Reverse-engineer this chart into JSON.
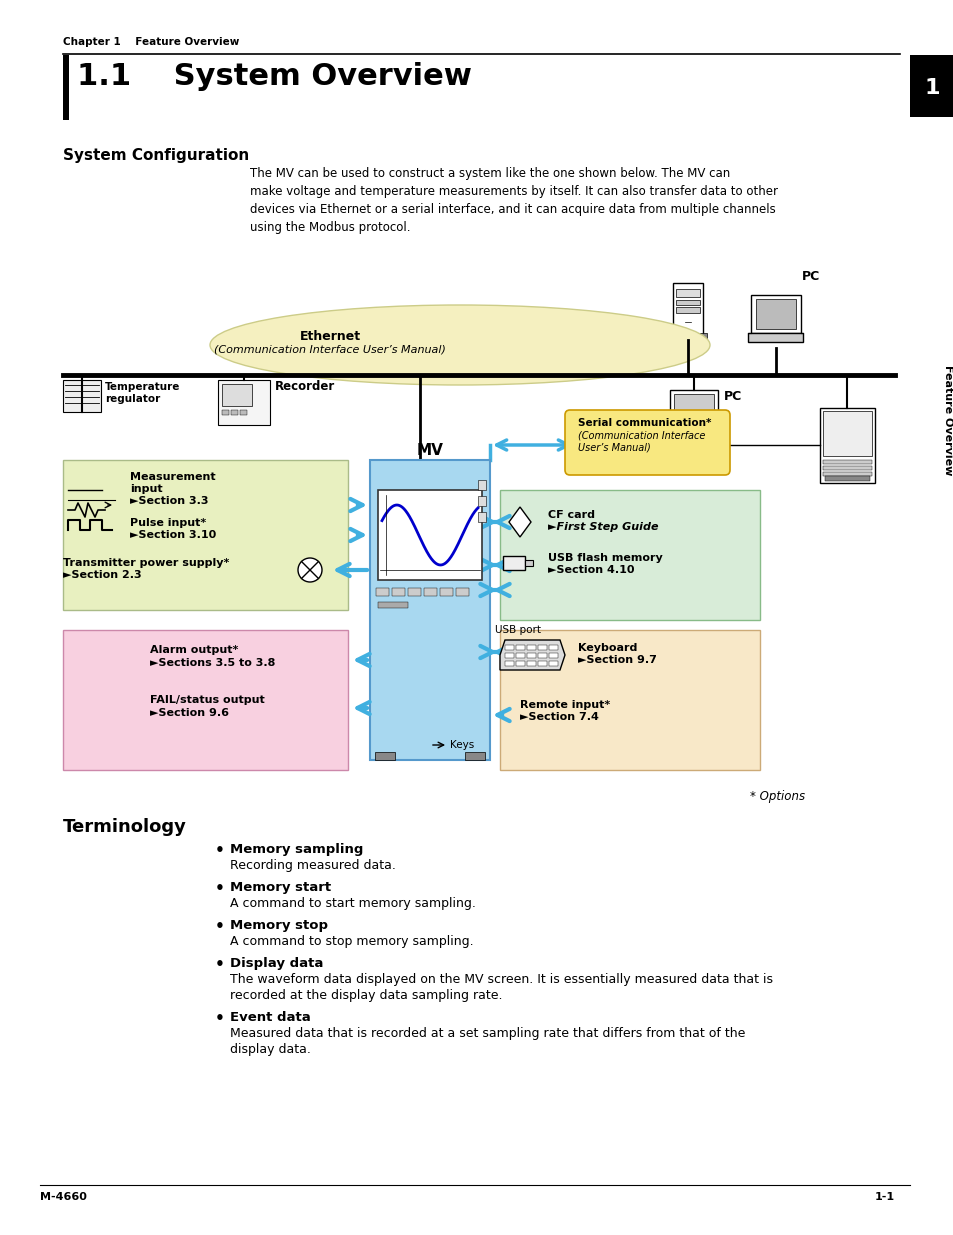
{
  "page_bg": "#ffffff",
  "top_header_text": "Chapter 1    Feature Overview",
  "title_text": "1.1    System Overview",
  "side_tab_number": "1",
  "side_tab_text": "Feature Overview",
  "section1_heading": "System Configuration",
  "body_lines": [
    "The MV can be used to construct a system like the one shown below. The MV can",
    "make voltage and temperature measurements by itself. It can also transfer data to other",
    "devices via Ethernet or a serial interface, and it can acquire data from multiple channels",
    "using the Modbus protocol."
  ],
  "section2_heading": "Terminology",
  "terminology": [
    {
      "term": "Memory sampling",
      "desc": [
        "Recording measured data."
      ]
    },
    {
      "term": "Memory start",
      "desc": [
        "A command to start memory sampling."
      ]
    },
    {
      "term": "Memory stop",
      "desc": [
        "A command to stop memory sampling."
      ]
    },
    {
      "term": "Display data",
      "desc": [
        "The waveform data displayed on the MV screen. It is essentially measured data that is",
        "recorded at the display data sampling rate."
      ]
    },
    {
      "term": "Event data",
      "desc": [
        "Measured data that is recorded at a set sampling rate that differs from that of the",
        "display data."
      ]
    }
  ],
  "footer_left": "M-4660",
  "footer_right": "1-1",
  "diagram": {
    "ethernet_oval_color": "#f5f0c0",
    "mv_box_color": "#a8d8f0",
    "input_box_color": "#e8f0c0",
    "alarm_box_color": "#f8d0e0",
    "cf_usb_box_color": "#d8ecd8",
    "keyboard_box_color": "#f8e8c8",
    "serial_bubble_color": "#f8e880",
    "arrow_color": "#40b0e0"
  }
}
